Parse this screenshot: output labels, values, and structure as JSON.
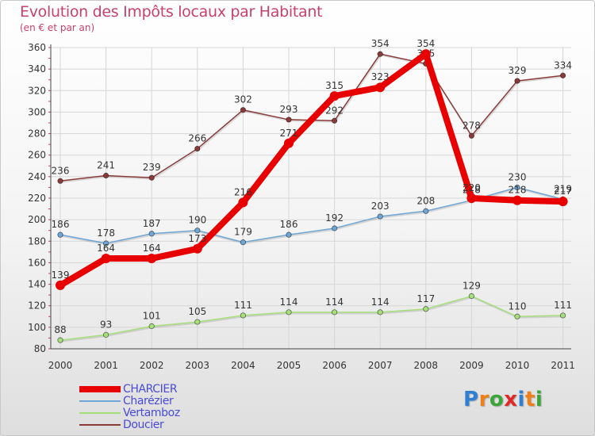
{
  "title": "Evolution des Impôts locaux par Habitant",
  "subtitle": "(en € et par an)",
  "logo": {
    "text": "Proxiti",
    "letters": [
      {
        "ch": "P",
        "color": "#2f7fd2"
      },
      {
        "ch": "r",
        "color": "#ef7f1a"
      },
      {
        "ch": "o",
        "color": "#3aa63a"
      },
      {
        "ch": "x",
        "color": "#e02a2a"
      },
      {
        "ch": "i",
        "color": "#2f7fd2"
      },
      {
        "ch": "t",
        "color": "#ef7f1a"
      },
      {
        "ch": "i",
        "color": "#3aa63a"
      }
    ]
  },
  "chart_data": {
    "type": "line",
    "title": "Evolution des Impôts locaux par Habitant",
    "subtitle": "(en € et par an)",
    "xlabel": "",
    "ylabel": "",
    "ylim": [
      80,
      360
    ],
    "yticks": [
      80,
      100,
      120,
      140,
      160,
      180,
      200,
      220,
      240,
      260,
      280,
      300,
      320,
      340,
      360
    ],
    "grid": true,
    "legend_position": "bottom-left",
    "x": [
      "2000",
      "2001",
      "2002",
      "2003",
      "2004",
      "2005",
      "2006",
      "2007",
      "2008",
      "2009",
      "2010",
      "2011"
    ],
    "series": [
      {
        "name": "CHARCIER",
        "color": "#e80000",
        "emphasis": true,
        "values": [
          139,
          164,
          164,
          173,
          216,
          271,
          315,
          323,
          354,
          220,
          218,
          217
        ]
      },
      {
        "name": "Charézier",
        "color": "#6fa6d6",
        "emphasis": false,
        "values": [
          186,
          178,
          187,
          190,
          179,
          186,
          192,
          203,
          208,
          218,
          230,
          219
        ]
      },
      {
        "name": "Vertamboz",
        "color": "#a6e07a",
        "emphasis": false,
        "values": [
          88,
          93,
          101,
          105,
          111,
          114,
          114,
          114,
          117,
          129,
          110,
          111
        ]
      },
      {
        "name": "Doucier",
        "color": "#8b3a3a",
        "emphasis": false,
        "values": [
          236,
          241,
          239,
          266,
          302,
          293,
          292,
          354,
          345,
          278,
          329,
          334
        ]
      }
    ]
  }
}
